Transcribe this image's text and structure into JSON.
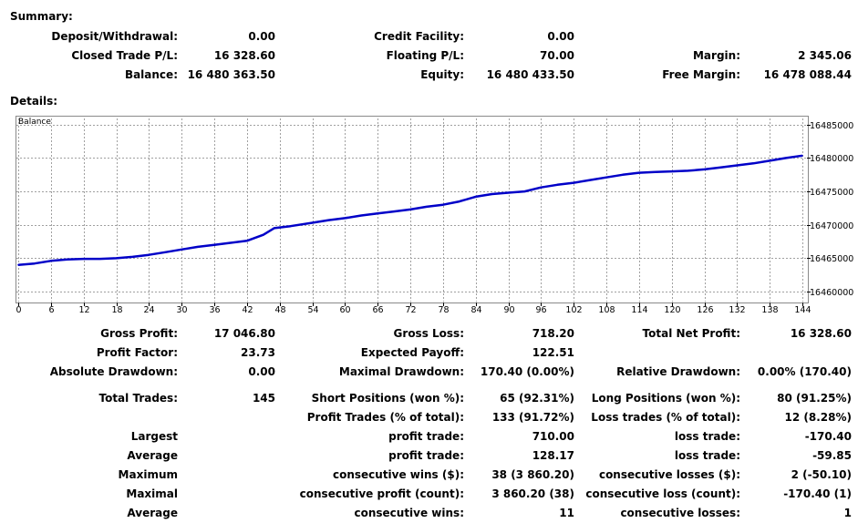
{
  "summary": {
    "title": "Summary:",
    "deposit_label": "Deposit/Withdrawal:",
    "deposit_value": "0.00",
    "credit_label": "Credit Facility:",
    "credit_value": "0.00",
    "closed_label": "Closed Trade P/L:",
    "closed_value": "16 328.60",
    "floating_label": "Floating P/L:",
    "floating_value": "70.00",
    "margin_label": "Margin:",
    "margin_value": "2 345.06",
    "balance_label": "Balance:",
    "balance_value": "16 480 363.50",
    "equity_label": "Equity:",
    "equity_value": "16 480 433.50",
    "free_margin_label": "Free Margin:",
    "free_margin_value": "16 478 088.44"
  },
  "details": {
    "title": "Details:",
    "rows": [
      [
        "Gross Profit:",
        "17 046.80",
        "Gross Loss:",
        "718.20",
        "Total Net Profit:",
        "16 328.60"
      ],
      [
        "Profit Factor:",
        "23.73",
        "Expected Payoff:",
        "122.51",
        "",
        ""
      ],
      [
        "Absolute Drawdown:",
        "0.00",
        "Maximal Drawdown:",
        "170.40 (0.00%)",
        "Relative Drawdown:",
        "0.00% (170.40)"
      ],
      [
        "Total Trades:",
        "145",
        "Short Positions (won %):",
        "65 (92.31%)",
        "Long Positions (won %):",
        "80 (91.25%)"
      ],
      [
        "",
        "",
        "Profit Trades (% of total):",
        "133 (91.72%)",
        "Loss trades (% of total):",
        "12 (8.28%)"
      ],
      [
        "Largest",
        "",
        "profit trade:",
        "710.00",
        "loss trade:",
        "-170.40"
      ],
      [
        "Average",
        "",
        "profit trade:",
        "128.17",
        "loss trade:",
        "-59.85"
      ],
      [
        "Maximum",
        "",
        "consecutive wins ($):",
        "38 (3 860.20)",
        "consecutive losses ($):",
        "2 (-50.10)"
      ],
      [
        "Maximal",
        "",
        "consecutive profit (count):",
        "3 860.20 (38)",
        "consecutive loss (count):",
        "-170.40 (1)"
      ],
      [
        "Average",
        "",
        "consecutive wins:",
        "11",
        "consecutive losses:",
        "1"
      ]
    ]
  },
  "chart_data": {
    "type": "line",
    "title": "Balance",
    "xlim": [
      0,
      144
    ],
    "ylim": [
      16458500,
      16486200
    ],
    "x_ticks": [
      0,
      6,
      12,
      18,
      24,
      30,
      36,
      42,
      48,
      54,
      60,
      66,
      72,
      78,
      84,
      90,
      96,
      102,
      108,
      114,
      120,
      126,
      132,
      138,
      144
    ],
    "y_ticks": [
      16460000,
      16465000,
      16470000,
      16475000,
      16480000,
      16485000
    ],
    "grid": true,
    "line_color": "#0000c8",
    "series": [
      {
        "x": [
          0,
          3,
          6,
          9,
          12,
          15,
          18,
          21,
          24,
          27,
          30,
          33,
          36,
          39,
          42,
          45,
          47,
          50,
          54,
          57,
          60,
          63,
          66,
          69,
          72,
          75,
          78,
          81,
          84,
          87,
          90,
          93,
          96,
          99,
          102,
          105,
          108,
          111,
          114,
          117,
          120,
          123,
          126,
          129,
          132,
          135,
          138,
          141,
          144
        ],
        "y": [
          16464000,
          16464200,
          16464600,
          16464800,
          16464900,
          16464900,
          16465000,
          16465200,
          16465500,
          16465900,
          16466300,
          16466700,
          16467000,
          16467300,
          16467600,
          16468500,
          16469500,
          16469800,
          16470300,
          16470700,
          16471000,
          16471400,
          16471700,
          16472000,
          16472300,
          16472700,
          16473000,
          16473500,
          16474200,
          16474600,
          16474800,
          16475000,
          16475600,
          16476000,
          16476300,
          16476700,
          16477100,
          16477500,
          16477800,
          16477900,
          16478000,
          16478100,
          16478300,
          16478600,
          16478900,
          16479200,
          16479600,
          16480000,
          16480363.5
        ]
      }
    ]
  }
}
